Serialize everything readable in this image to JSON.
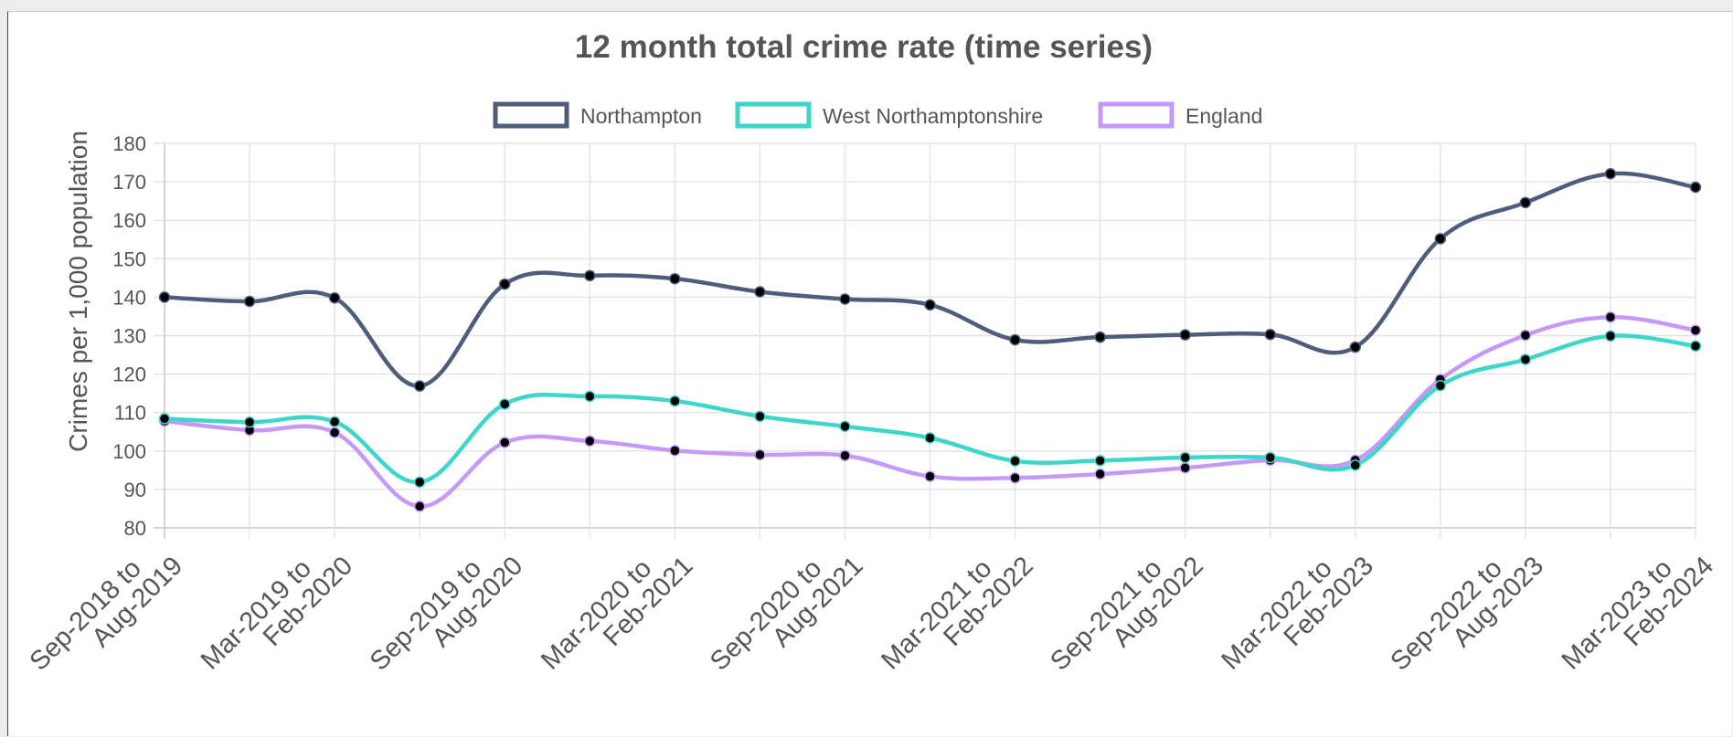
{
  "chart_data": {
    "type": "line",
    "title": "12 month total crime rate (time series)",
    "ylabel": "Crimes per 1,000 population",
    "xlabel": "",
    "ylim": [
      80,
      180
    ],
    "yticks": [
      80,
      90,
      100,
      110,
      120,
      130,
      140,
      150,
      160,
      170,
      180
    ],
    "grid": true,
    "legend_position": "top",
    "x_tick_labels": [
      [
        "Sep-2018 to",
        "Aug-2019"
      ],
      [
        "Mar-2019 to",
        "Feb-2020"
      ],
      [
        "Sep-2019 to",
        "Aug-2020"
      ],
      [
        "Mar-2020 to",
        "Feb-2021"
      ],
      [
        "Sep-2020 to",
        "Aug-2021"
      ],
      [
        "Mar-2021 to",
        "Feb-2022"
      ],
      [
        "Sep-2021 to",
        "Aug-2022"
      ],
      [
        "Mar-2022 to",
        "Feb-2023"
      ],
      [
        "Sep-2022 to",
        "Aug-2023"
      ],
      [
        "Mar-2023 to",
        "Feb-2024"
      ]
    ],
    "point_count": 19,
    "series": [
      {
        "name": "Northampton",
        "color": "#4f5d7a",
        "values": [
          140.0,
          138.9,
          139.8,
          116.9,
          143.4,
          145.6,
          144.8,
          141.4,
          139.5,
          138.0,
          128.9,
          129.6,
          130.2,
          130.3,
          127.0,
          155.2,
          164.6,
          172.1,
          168.6
        ]
      },
      {
        "name": "West Northamptonshire",
        "color": "#3fd6ca",
        "values": [
          108.4,
          107.5,
          107.6,
          91.9,
          112.2,
          114.2,
          113.0,
          109.0,
          106.4,
          103.4,
          97.4,
          97.5,
          98.3,
          98.3,
          96.3,
          117.0,
          123.8,
          129.9,
          127.3
        ]
      },
      {
        "name": "England",
        "color": "#c59af7",
        "values": [
          107.8,
          105.4,
          104.8,
          85.6,
          102.2,
          102.6,
          100.1,
          99.0,
          98.8,
          93.4,
          93.0,
          94.0,
          95.6,
          97.6,
          97.6,
          118.6,
          130.1,
          134.8,
          131.4
        ]
      }
    ]
  }
}
